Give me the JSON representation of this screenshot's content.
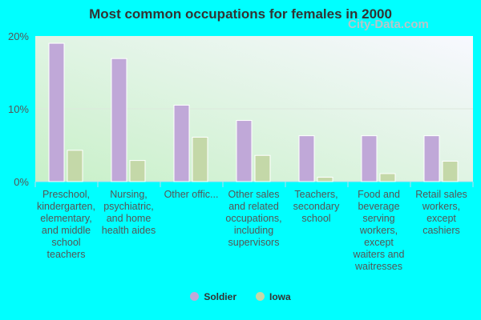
{
  "chart_data": {
    "type": "bar",
    "title": "Most common occupations for females in 2000",
    "categories": [
      "Preschool, kindergarten, elementary, and middle school teachers",
      "Nursing, psychiatric, and home health aides",
      "Other offic...",
      "Other sales and related occupations, including supervisors",
      "Teachers, secondary school",
      "Food and beverage serving workers, except waiters and waitresses",
      "Retail sales workers, except cashiers"
    ],
    "series": [
      {
        "name": "Soldier",
        "color": "#c0a8d8",
        "values": [
          19.0,
          16.9,
          10.5,
          8.4,
          6.3,
          6.3,
          6.3
        ]
      },
      {
        "name": "Iowa",
        "color": "#c4d8a8",
        "values": [
          4.3,
          2.9,
          6.1,
          3.6,
          0.6,
          1.1,
          2.8
        ]
      }
    ],
    "yticks": [
      "0%",
      "10%",
      "20%"
    ],
    "ylim": [
      0,
      20
    ],
    "grid": true,
    "legend": "bottom"
  },
  "watermark": "City-Data.com"
}
